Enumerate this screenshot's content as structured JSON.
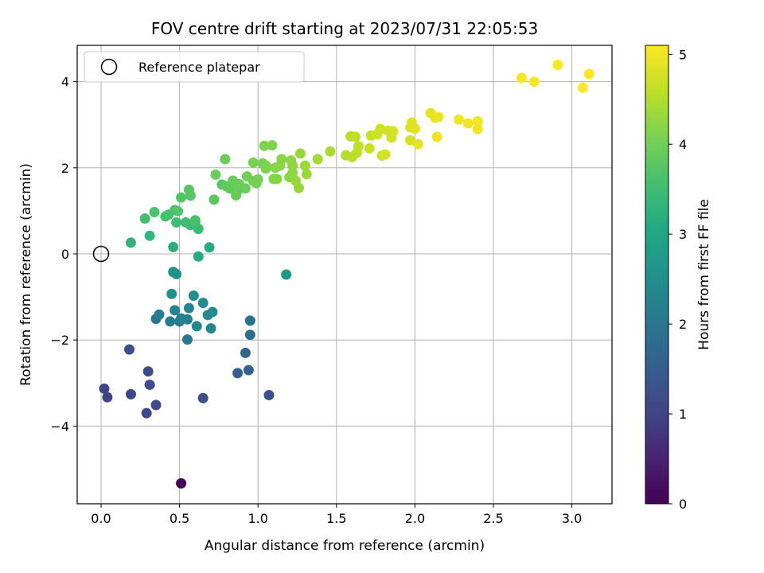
{
  "chart_data": {
    "type": "scatter",
    "title": "FOV centre drift starting at 2023/07/31 22:05:53",
    "xlabel": "Angular distance from reference (arcmin)",
    "ylabel": "Rotation from reference (arcmin)",
    "xlim": [
      -0.15,
      3.27
    ],
    "ylim": [
      -5.8,
      4.9
    ],
    "xticks": [
      0.0,
      0.5,
      1.0,
      1.5,
      2.0,
      2.5,
      3.0
    ],
    "xtick_labels": [
      "0.0",
      "0.5",
      "1.0",
      "1.5",
      "2.0",
      "2.5",
      "3.0"
    ],
    "yticks": [
      -4,
      -2,
      0,
      2,
      4
    ],
    "ytick_labels": [
      "−4",
      "−2",
      "0",
      "2",
      "4"
    ],
    "grid": true,
    "colormap": "viridis",
    "colorbar": {
      "label": "Hours from first FF file",
      "range": [
        0,
        5.1
      ],
      "ticks": [
        0,
        1,
        2,
        3,
        4,
        5
      ],
      "tick_labels": [
        "0",
        "1",
        "2",
        "3",
        "4",
        "5"
      ]
    },
    "legend": {
      "position": "top-left",
      "label": "Reference platepar"
    },
    "reference_point": {
      "x": 0.0,
      "y": 0.0
    },
    "points": [
      {
        "x": 0.51,
        "y": -5.33,
        "c": 0.0
      },
      {
        "x": 0.02,
        "y": -3.13,
        "c": 1.0
      },
      {
        "x": 0.04,
        "y": -3.33,
        "c": 1.0
      },
      {
        "x": 0.19,
        "y": -3.26,
        "c": 1.05
      },
      {
        "x": 0.29,
        "y": -3.7,
        "c": 1.1
      },
      {
        "x": 0.35,
        "y": -3.51,
        "c": 1.1
      },
      {
        "x": 0.31,
        "y": -3.04,
        "c": 1.15
      },
      {
        "x": 0.3,
        "y": -2.73,
        "c": 1.15
      },
      {
        "x": 0.18,
        "y": -2.22,
        "c": 1.2
      },
      {
        "x": 0.65,
        "y": -3.35,
        "c": 1.2
      },
      {
        "x": 1.07,
        "y": -3.28,
        "c": 1.25
      },
      {
        "x": 0.87,
        "y": -2.77,
        "c": 1.5
      },
      {
        "x": 0.94,
        "y": -2.7,
        "c": 1.6
      },
      {
        "x": 0.92,
        "y": -2.3,
        "c": 1.7
      },
      {
        "x": 0.95,
        "y": -1.88,
        "c": 1.8
      },
      {
        "x": 0.95,
        "y": -1.55,
        "c": 1.9
      },
      {
        "x": 0.55,
        "y": -1.99,
        "c": 2.0
      },
      {
        "x": 0.35,
        "y": -1.51,
        "c": 2.0
      },
      {
        "x": 0.37,
        "y": -1.41,
        "c": 2.1
      },
      {
        "x": 0.44,
        "y": -1.57,
        "c": 2.1
      },
      {
        "x": 0.5,
        "y": -1.57,
        "c": 2.15
      },
      {
        "x": 0.51,
        "y": -1.5,
        "c": 2.2
      },
      {
        "x": 0.55,
        "y": -1.52,
        "c": 2.2
      },
      {
        "x": 0.47,
        "y": -1.31,
        "c": 2.3
      },
      {
        "x": 0.56,
        "y": -1.26,
        "c": 2.3
      },
      {
        "x": 0.61,
        "y": -1.68,
        "c": 2.35
      },
      {
        "x": 0.7,
        "y": -1.73,
        "c": 2.35
      },
      {
        "x": 0.68,
        "y": -1.42,
        "c": 2.4
      },
      {
        "x": 0.71,
        "y": -1.35,
        "c": 2.4
      },
      {
        "x": 0.65,
        "y": -1.14,
        "c": 2.45
      },
      {
        "x": 0.59,
        "y": -0.97,
        "c": 2.5
      },
      {
        "x": 0.45,
        "y": -0.93,
        "c": 2.5
      },
      {
        "x": 0.46,
        "y": -0.42,
        "c": 2.6
      },
      {
        "x": 0.48,
        "y": -0.47,
        "c": 2.6
      },
      {
        "x": 1.18,
        "y": -0.48,
        "c": 2.7
      },
      {
        "x": 0.62,
        "y": -0.06,
        "c": 3.1
      },
      {
        "x": 0.69,
        "y": 0.15,
        "c": 3.15
      },
      {
        "x": 0.46,
        "y": 0.16,
        "c": 3.2
      },
      {
        "x": 0.19,
        "y": 0.26,
        "c": 3.3
      },
      {
        "x": 0.31,
        "y": 0.42,
        "c": 3.35
      },
      {
        "x": 0.57,
        "y": 0.67,
        "c": 3.4
      },
      {
        "x": 0.62,
        "y": 0.58,
        "c": 3.45
      },
      {
        "x": 0.48,
        "y": 0.73,
        "c": 3.5
      },
      {
        "x": 0.54,
        "y": 0.73,
        "c": 3.5
      },
      {
        "x": 0.6,
        "y": 0.74,
        "c": 3.55
      },
      {
        "x": 0.6,
        "y": 0.78,
        "c": 3.6
      },
      {
        "x": 0.28,
        "y": 0.82,
        "c": 3.55
      },
      {
        "x": 0.41,
        "y": 0.87,
        "c": 3.6
      },
      {
        "x": 0.43,
        "y": 0.91,
        "c": 3.6
      },
      {
        "x": 0.34,
        "y": 0.97,
        "c": 3.65
      },
      {
        "x": 0.47,
        "y": 1.02,
        "c": 3.65
      },
      {
        "x": 0.49,
        "y": 0.99,
        "c": 3.7
      },
      {
        "x": 0.51,
        "y": 1.31,
        "c": 3.7
      },
      {
        "x": 0.57,
        "y": 1.35,
        "c": 3.75
      },
      {
        "x": 0.56,
        "y": 1.49,
        "c": 3.75
      },
      {
        "x": 0.72,
        "y": 1.26,
        "c": 3.8
      },
      {
        "x": 0.77,
        "y": 1.61,
        "c": 3.8
      },
      {
        "x": 0.8,
        "y": 1.57,
        "c": 3.85
      },
      {
        "x": 0.82,
        "y": 1.52,
        "c": 3.85
      },
      {
        "x": 0.84,
        "y": 1.7,
        "c": 3.9
      },
      {
        "x": 0.86,
        "y": 1.36,
        "c": 3.9
      },
      {
        "x": 0.87,
        "y": 1.47,
        "c": 3.9
      },
      {
        "x": 0.92,
        "y": 1.52,
        "c": 3.95
      },
      {
        "x": 0.88,
        "y": 1.62,
        "c": 3.95
      },
      {
        "x": 0.73,
        "y": 1.84,
        "c": 3.95
      },
      {
        "x": 0.79,
        "y": 2.2,
        "c": 3.95
      },
      {
        "x": 0.93,
        "y": 1.8,
        "c": 4.0
      },
      {
        "x": 0.97,
        "y": 1.69,
        "c": 4.0
      },
      {
        "x": 0.99,
        "y": 1.64,
        "c": 4.0
      },
      {
        "x": 1.0,
        "y": 1.73,
        "c": 4.05
      },
      {
        "x": 0.97,
        "y": 2.12,
        "c": 4.05
      },
      {
        "x": 1.03,
        "y": 2.1,
        "c": 4.05
      },
      {
        "x": 1.05,
        "y": 2.05,
        "c": 4.1
      },
      {
        "x": 1.05,
        "y": 1.98,
        "c": 4.1
      },
      {
        "x": 1.04,
        "y": 2.51,
        "c": 4.1
      },
      {
        "x": 1.09,
        "y": 2.52,
        "c": 4.1
      },
      {
        "x": 1.1,
        "y": 1.74,
        "c": 4.15
      },
      {
        "x": 1.12,
        "y": 1.74,
        "c": 4.15
      },
      {
        "x": 1.11,
        "y": 2.0,
        "c": 4.15
      },
      {
        "x": 1.14,
        "y": 2.05,
        "c": 4.2
      },
      {
        "x": 1.15,
        "y": 2.2,
        "c": 4.2
      },
      {
        "x": 1.2,
        "y": 1.78,
        "c": 4.2
      },
      {
        "x": 1.22,
        "y": 1.88,
        "c": 4.25
      },
      {
        "x": 1.21,
        "y": 2.17,
        "c": 4.25
      },
      {
        "x": 1.22,
        "y": 2.05,
        "c": 4.25
      },
      {
        "x": 1.24,
        "y": 1.7,
        "c": 4.3
      },
      {
        "x": 1.26,
        "y": 1.53,
        "c": 4.3
      },
      {
        "x": 1.27,
        "y": 2.33,
        "c": 4.3
      },
      {
        "x": 1.3,
        "y": 2.05,
        "c": 4.35
      },
      {
        "x": 1.31,
        "y": 1.85,
        "c": 4.35
      },
      {
        "x": 1.38,
        "y": 2.2,
        "c": 4.4
      },
      {
        "x": 1.46,
        "y": 2.38,
        "c": 4.45
      },
      {
        "x": 1.56,
        "y": 2.29,
        "c": 4.5
      },
      {
        "x": 1.59,
        "y": 2.73,
        "c": 4.55
      },
      {
        "x": 1.6,
        "y": 2.25,
        "c": 4.55
      },
      {
        "x": 1.62,
        "y": 2.72,
        "c": 4.6
      },
      {
        "x": 1.63,
        "y": 2.35,
        "c": 4.6
      },
      {
        "x": 1.64,
        "y": 2.5,
        "c": 4.6
      },
      {
        "x": 1.71,
        "y": 2.45,
        "c": 4.65
      },
      {
        "x": 1.72,
        "y": 2.75,
        "c": 4.65
      },
      {
        "x": 1.76,
        "y": 2.78,
        "c": 4.7
      },
      {
        "x": 1.78,
        "y": 2.9,
        "c": 4.7
      },
      {
        "x": 1.79,
        "y": 2.28,
        "c": 4.7
      },
      {
        "x": 1.81,
        "y": 2.31,
        "c": 4.75
      },
      {
        "x": 1.83,
        "y": 2.86,
        "c": 4.75
      },
      {
        "x": 1.85,
        "y": 2.7,
        "c": 4.75
      },
      {
        "x": 1.86,
        "y": 2.85,
        "c": 4.8
      },
      {
        "x": 1.97,
        "y": 2.64,
        "c": 4.8
      },
      {
        "x": 1.97,
        "y": 2.94,
        "c": 4.85
      },
      {
        "x": 1.98,
        "y": 3.05,
        "c": 4.85
      },
      {
        "x": 2.0,
        "y": 2.91,
        "c": 4.85
      },
      {
        "x": 2.02,
        "y": 2.55,
        "c": 4.9
      },
      {
        "x": 2.1,
        "y": 3.27,
        "c": 4.9
      },
      {
        "x": 2.13,
        "y": 3.16,
        "c": 4.9
      },
      {
        "x": 2.15,
        "y": 3.18,
        "c": 4.95
      },
      {
        "x": 2.14,
        "y": 2.72,
        "c": 4.95
      },
      {
        "x": 2.28,
        "y": 3.12,
        "c": 5.0
      },
      {
        "x": 2.34,
        "y": 3.03,
        "c": 5.0
      },
      {
        "x": 2.4,
        "y": 3.08,
        "c": 5.0
      },
      {
        "x": 2.4,
        "y": 2.9,
        "c": 5.0
      },
      {
        "x": 2.68,
        "y": 4.09,
        "c": 5.05
      },
      {
        "x": 2.76,
        "y": 4.0,
        "c": 5.05
      },
      {
        "x": 2.91,
        "y": 4.39,
        "c": 5.1
      },
      {
        "x": 3.07,
        "y": 3.86,
        "c": 5.1
      },
      {
        "x": 3.11,
        "y": 4.18,
        "c": 5.1
      }
    ]
  }
}
